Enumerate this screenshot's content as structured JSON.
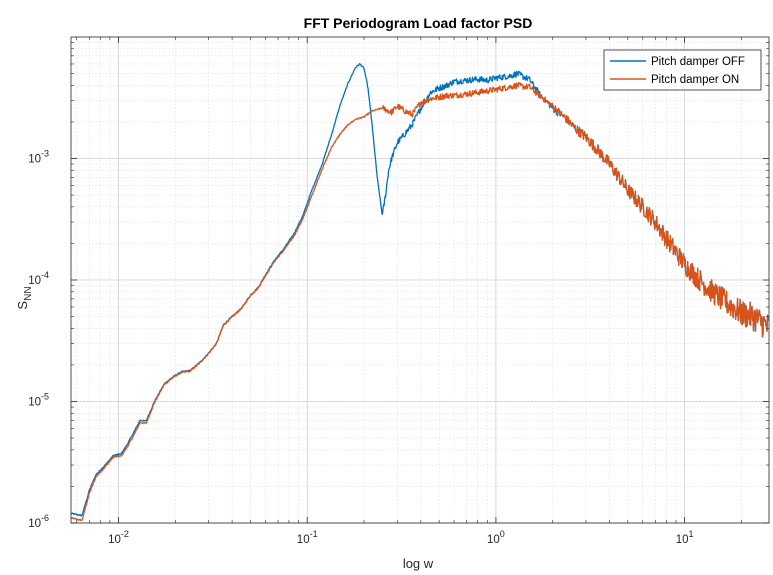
{
  "chart_data": {
    "type": "line",
    "title": "FFT Periodogram Load factor PSD",
    "xlabel": "log w",
    "ylabel_main": "S",
    "ylabel_sub": "NN",
    "x_scale": "log",
    "y_scale": "log",
    "xlim": [
      0.0056,
      28
    ],
    "ylim": [
      1e-06,
      0.01
    ],
    "x_ticks": [
      {
        "value": 0.01,
        "base": "10",
        "exp": "-2"
      },
      {
        "value": 0.1,
        "base": "10",
        "exp": "-1"
      },
      {
        "value": 1,
        "base": "10",
        "exp": "0"
      },
      {
        "value": 10,
        "base": "10",
        "exp": "1"
      }
    ],
    "y_ticks": [
      {
        "value": 1e-06,
        "base": "10",
        "exp": "-6"
      },
      {
        "value": 1e-05,
        "base": "10",
        "exp": "-5"
      },
      {
        "value": 0.0001,
        "base": "10",
        "exp": "-4"
      },
      {
        "value": 0.001,
        "base": "10",
        "exp": "-3"
      }
    ],
    "grid": true,
    "minor_grid": true,
    "legend_position": "top-right",
    "series": [
      {
        "name": "Pitch damper OFF",
        "color": "#0072BD",
        "x": [
          0.0056,
          0.0064,
          0.007,
          0.0076,
          0.0085,
          0.0094,
          0.0103,
          0.011,
          0.012,
          0.013,
          0.014,
          0.0155,
          0.0175,
          0.0195,
          0.0215,
          0.024,
          0.027,
          0.03,
          0.033,
          0.036,
          0.04,
          0.045,
          0.05,
          0.055,
          0.06,
          0.067,
          0.075,
          0.085,
          0.095,
          0.105,
          0.12,
          0.135,
          0.15,
          0.165,
          0.18,
          0.19,
          0.2,
          0.21,
          0.22,
          0.235,
          0.25,
          0.26,
          0.27,
          0.28,
          0.3,
          0.33,
          0.36,
          0.4,
          0.45,
          0.5,
          0.55,
          0.6,
          0.7,
          0.8,
          0.9,
          1.0,
          1.1,
          1.2,
          1.3,
          1.4,
          1.5,
          1.7,
          2.0,
          2.3,
          2.6,
          3.0,
          3.5,
          4.0,
          4.5,
          5.0,
          6.0,
          7.0,
          8.0,
          9.0,
          10.0,
          12.0,
          14.0,
          16.0,
          18.0,
          20.0,
          23.0,
          26.0,
          28.0
        ],
        "y": [
          1.2e-06,
          1.15e-06,
          1.85e-06,
          2.5e-06,
          3e-06,
          3.6e-06,
          3.7e-06,
          4.3e-06,
          5.5e-06,
          7e-06,
          6.9e-06,
          1e-05,
          1.4e-05,
          1.6e-05,
          1.75e-05,
          1.8e-05,
          2.1e-05,
          2.5e-05,
          3e-05,
          4.3e-05,
          5e-05,
          5.9e-05,
          7.5e-05,
          8.7e-05,
          0.00011,
          0.000145,
          0.00018,
          0.00024,
          0.00034,
          0.00053,
          0.0009,
          0.0016,
          0.0028,
          0.0042,
          0.0056,
          0.006,
          0.0055,
          0.0038,
          0.002,
          0.0007,
          0.00034,
          0.0005,
          0.0008,
          0.001,
          0.00135,
          0.0016,
          0.0019,
          0.0026,
          0.0035,
          0.0038,
          0.004,
          0.0043,
          0.0044,
          0.0045,
          0.0044,
          0.0046,
          0.0047,
          0.0048,
          0.005,
          0.0047,
          0.0045,
          0.0034,
          0.0026,
          0.0022,
          0.0018,
          0.0015,
          0.00115,
          0.0009,
          0.0007,
          0.00055,
          0.0004,
          0.0003,
          0.00022,
          0.00017,
          0.000135,
          0.0001,
          8e-05,
          6.8e-05,
          6e-05,
          5.3e-05,
          5e-05,
          4.4e-05,
          4e-05
        ]
      },
      {
        "name": "Pitch damper ON",
        "color": "#D95319",
        "x": [
          0.0056,
          0.0064,
          0.007,
          0.0076,
          0.0085,
          0.0094,
          0.0103,
          0.011,
          0.012,
          0.013,
          0.014,
          0.0155,
          0.0175,
          0.0195,
          0.0215,
          0.024,
          0.027,
          0.03,
          0.033,
          0.036,
          0.04,
          0.045,
          0.05,
          0.055,
          0.06,
          0.067,
          0.075,
          0.085,
          0.095,
          0.105,
          0.12,
          0.135,
          0.15,
          0.165,
          0.18,
          0.2,
          0.22,
          0.25,
          0.28,
          0.3,
          0.33,
          0.36,
          0.4,
          0.45,
          0.5,
          0.55,
          0.6,
          0.7,
          0.8,
          0.9,
          1.0,
          1.1,
          1.2,
          1.3,
          1.4,
          1.5,
          1.7,
          2.0,
          2.3,
          2.6,
          3.0,
          3.5,
          4.0,
          4.5,
          5.0,
          6.0,
          7.0,
          8.0,
          9.0,
          10.0,
          12.0,
          14.0,
          16.0,
          18.0,
          20.0,
          23.0,
          26.0,
          28.0
        ],
        "y": [
          1.1e-06,
          1.05e-06,
          1.75e-06,
          2.4e-06,
          2.9e-06,
          3.5e-06,
          3.55e-06,
          4.1e-06,
          5.2e-06,
          6.7e-06,
          6.6e-06,
          9.8e-06,
          1.38e-05,
          1.58e-05,
          1.73e-05,
          1.78e-05,
          2.08e-05,
          2.48e-05,
          2.98e-05,
          4.25e-05,
          4.95e-05,
          5.85e-05,
          7.45e-05,
          8.6e-05,
          0.000108,
          0.000142,
          0.000175,
          0.00023,
          0.00032,
          0.00048,
          0.00082,
          0.00125,
          0.0016,
          0.0019,
          0.0021,
          0.0022,
          0.00245,
          0.0026,
          0.0024,
          0.0027,
          0.00245,
          0.0023,
          0.0029,
          0.0031,
          0.0032,
          0.0033,
          0.0033,
          0.0034,
          0.0035,
          0.0036,
          0.0037,
          0.0038,
          0.0039,
          0.004,
          0.0039,
          0.0039,
          0.0033,
          0.0027,
          0.0022,
          0.0018,
          0.0015,
          0.00115,
          0.0009,
          0.0007,
          0.00055,
          0.0004,
          0.0003,
          0.00022,
          0.00017,
          0.000135,
          0.0001,
          8e-05,
          6.8e-05,
          6e-05,
          5.3e-05,
          5e-05,
          4.4e-05,
          4e-05
        ]
      }
    ]
  }
}
